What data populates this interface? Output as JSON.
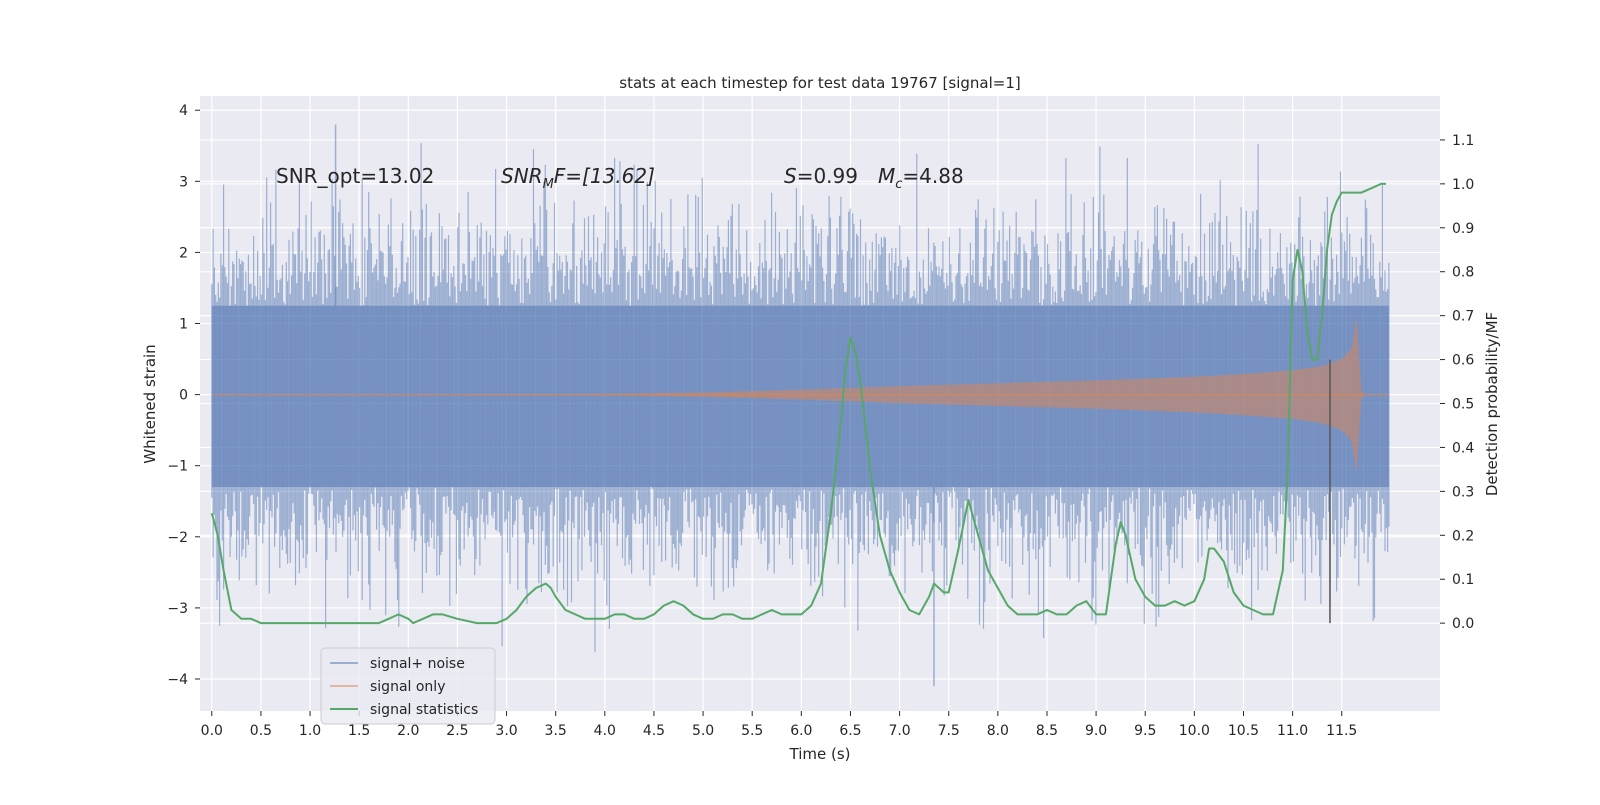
{
  "chart_data": {
    "type": "line",
    "title": "stats at each timestep for test data 19767 [signal=1]",
    "xlabel": "Time (s)",
    "ylabel_left": "Whitened strain",
    "ylabel_right": "Detection probability/MF",
    "xlim": [
      -0.12,
      12.5
    ],
    "ylim_left": [
      -4.45,
      4.2
    ],
    "ylim_right": [
      -0.2,
      1.2
    ],
    "x_ticks": [
      0.0,
      0.5,
      1.0,
      1.5,
      2.0,
      2.5,
      3.0,
      3.5,
      4.0,
      4.5,
      5.0,
      5.5,
      6.0,
      6.5,
      7.0,
      7.5,
      8.0,
      8.5,
      9.0,
      9.5,
      10.0,
      10.5,
      11.0,
      11.5
    ],
    "x_tick_labels": [
      "0.0",
      "0.5",
      "1.0",
      "1.5",
      "2.0",
      "2.5",
      "3.0",
      "3.5",
      "4.0",
      "4.5",
      "5.0",
      "5.5",
      "6.0",
      "6.5",
      "7.0",
      "7.5",
      "8.0",
      "8.5",
      "9.0",
      "9.5",
      "10.0",
      "10.5",
      "11.0",
      "11.5"
    ],
    "y_left_ticks": [
      -4,
      -3,
      -2,
      -1,
      0,
      1,
      2,
      3,
      4
    ],
    "y_left_tick_labels": [
      "−4",
      "−3",
      "−2",
      "−1",
      "0",
      "1",
      "2",
      "3",
      "4"
    ],
    "y_right_ticks": [
      0.0,
      0.1,
      0.2,
      0.3,
      0.4,
      0.5,
      0.6,
      0.7,
      0.8,
      0.9,
      1.0,
      1.1
    ],
    "y_right_tick_labels": [
      "0.0",
      "0.1",
      "0.2",
      "0.3",
      "0.4",
      "0.5",
      "0.6",
      "0.7",
      "0.8",
      "0.9",
      "1.0",
      "1.1"
    ],
    "annotations": {
      "snr_opt": "SNR_opt=13.02",
      "snr_mf_name": "SNR",
      "snr_mf_sub": "M",
      "snr_mf_rest": "F=[13.62]",
      "s_name": "S",
      "s_value": "=0.99",
      "mc_name": "M",
      "mc_sub": "c",
      "mc_value": "=4.88"
    },
    "vertical_marker_x": 11.38,
    "legend": [
      "signal+ noise",
      "signal only",
      "signal statistics"
    ],
    "legend_placement": "lower-left",
    "series": [
      {
        "name": "signal+ noise",
        "axis": "left",
        "color": "#4c72b0",
        "opacity": 0.5,
        "t_start": 0.0,
        "t_end": 11.98,
        "envelope_core": [
          -1.3,
          1.25
        ],
        "typical_peaks": [
          2.6,
          -2.6
        ],
        "max": 3.8,
        "min": -4.1
      },
      {
        "name": "signal only",
        "axis": "left",
        "color": "#dd8452",
        "opacity": 0.5,
        "chirp_envelope": {
          "x": [
            0.0,
            2.0,
            4.0,
            5.0,
            6.0,
            7.0,
            8.0,
            9.0,
            10.0,
            10.5,
            11.0,
            11.3,
            11.5,
            11.6,
            11.65,
            11.7,
            11.75,
            11.98
          ],
          "amplitude": [
            0.0,
            0.003,
            0.01,
            0.03,
            0.07,
            0.12,
            0.16,
            0.2,
            0.25,
            0.29,
            0.34,
            0.4,
            0.5,
            0.65,
            1.1,
            0.05,
            0.0,
            0.0
          ]
        }
      },
      {
        "name": "signal statistics",
        "axis": "right",
        "color": "#55a868",
        "x": [
          0.0,
          0.06,
          0.12,
          0.2,
          0.3,
          0.4,
          0.5,
          0.6,
          0.8,
          1.0,
          1.2,
          1.4,
          1.6,
          1.7,
          1.8,
          1.9,
          2.0,
          2.05,
          2.15,
          2.25,
          2.35,
          2.5,
          2.7,
          2.9,
          3.0,
          3.1,
          3.2,
          3.3,
          3.4,
          3.45,
          3.5,
          3.6,
          3.7,
          3.8,
          3.9,
          4.0,
          4.1,
          4.2,
          4.3,
          4.4,
          4.5,
          4.6,
          4.7,
          4.8,
          4.9,
          5.0,
          5.1,
          5.2,
          5.3,
          5.4,
          5.5,
          5.6,
          5.7,
          5.8,
          5.9,
          6.0,
          6.1,
          6.2,
          6.3,
          6.4,
          6.45,
          6.5,
          6.55,
          6.6,
          6.65,
          6.7,
          6.8,
          6.9,
          7.0,
          7.1,
          7.2,
          7.3,
          7.35,
          7.4,
          7.45,
          7.5,
          7.6,
          7.7,
          7.8,
          7.9,
          8.0,
          8.1,
          8.2,
          8.3,
          8.4,
          8.5,
          8.6,
          8.7,
          8.8,
          8.9,
          9.0,
          9.1,
          9.2,
          9.25,
          9.3,
          9.4,
          9.5,
          9.6,
          9.7,
          9.8,
          9.9,
          10.0,
          10.1,
          10.15,
          10.2,
          10.3,
          10.4,
          10.5,
          10.6,
          10.7,
          10.8,
          10.9,
          10.95,
          11.0,
          11.05,
          11.1,
          11.15,
          11.2,
          11.25,
          11.3,
          11.35,
          11.4,
          11.45,
          11.5,
          11.6,
          11.7,
          11.8,
          11.9,
          11.95
        ],
        "values": [
          0.25,
          0.2,
          0.12,
          0.03,
          0.01,
          0.01,
          0.0,
          0.0,
          0.0,
          0.0,
          0.0,
          0.0,
          0.0,
          0.0,
          0.01,
          0.02,
          0.01,
          0.0,
          0.01,
          0.02,
          0.02,
          0.01,
          0.0,
          0.0,
          0.01,
          0.03,
          0.06,
          0.08,
          0.09,
          0.08,
          0.06,
          0.03,
          0.02,
          0.01,
          0.01,
          0.01,
          0.02,
          0.02,
          0.01,
          0.01,
          0.02,
          0.04,
          0.05,
          0.04,
          0.02,
          0.01,
          0.01,
          0.02,
          0.02,
          0.01,
          0.01,
          0.02,
          0.03,
          0.02,
          0.02,
          0.02,
          0.04,
          0.09,
          0.25,
          0.45,
          0.58,
          0.65,
          0.62,
          0.55,
          0.45,
          0.35,
          0.2,
          0.12,
          0.07,
          0.03,
          0.02,
          0.06,
          0.09,
          0.08,
          0.07,
          0.07,
          0.17,
          0.28,
          0.2,
          0.12,
          0.08,
          0.04,
          0.02,
          0.02,
          0.02,
          0.03,
          0.02,
          0.02,
          0.04,
          0.05,
          0.02,
          0.02,
          0.18,
          0.23,
          0.2,
          0.1,
          0.06,
          0.04,
          0.04,
          0.05,
          0.04,
          0.05,
          0.1,
          0.17,
          0.17,
          0.14,
          0.07,
          0.04,
          0.03,
          0.02,
          0.02,
          0.12,
          0.35,
          0.78,
          0.85,
          0.8,
          0.66,
          0.6,
          0.6,
          0.7,
          0.85,
          0.93,
          0.96,
          0.98,
          0.98,
          0.98,
          0.99,
          1.0,
          1.0
        ]
      }
    ]
  }
}
